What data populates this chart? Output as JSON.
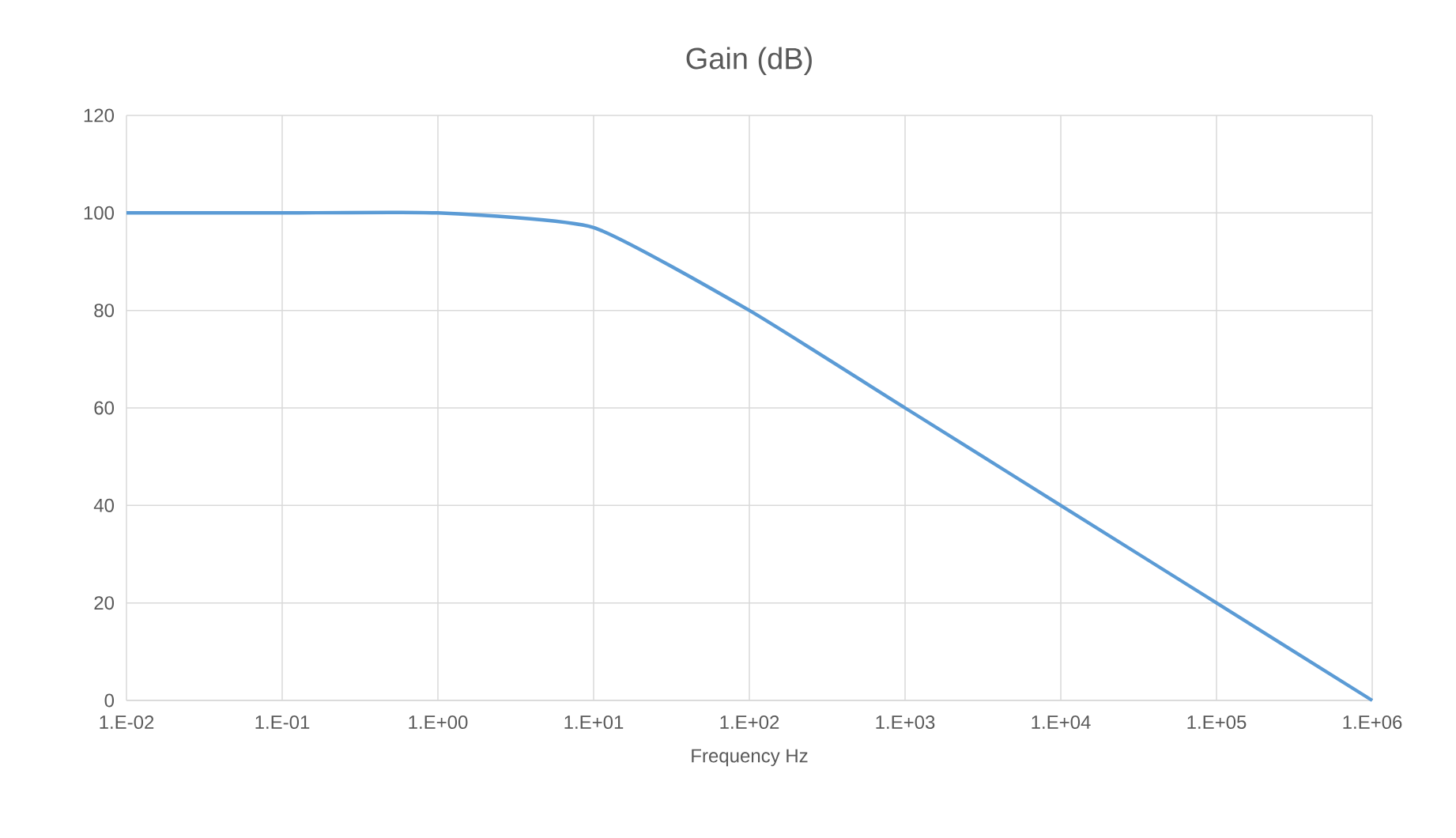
{
  "chart_data": {
    "type": "line",
    "title": "Gain (dB)",
    "xlabel": "Frequency Hz",
    "categories": [
      "1.E-02",
      "1.E-01",
      "1.E+00",
      "1.E+01",
      "1.E+02",
      "1.E+03",
      "1.E+04",
      "1.E+05",
      "1.E+06"
    ],
    "series": [
      {
        "color": "#5b9bd5",
        "values": [
          100,
          100,
          100,
          97,
          80,
          60,
          40,
          20,
          0
        ]
      }
    ],
    "ylim": [
      0,
      120
    ],
    "yticks": [
      0,
      20,
      40,
      60,
      80,
      100,
      120
    ],
    "grid": true,
    "marker": "none",
    "line_style": "solid"
  }
}
